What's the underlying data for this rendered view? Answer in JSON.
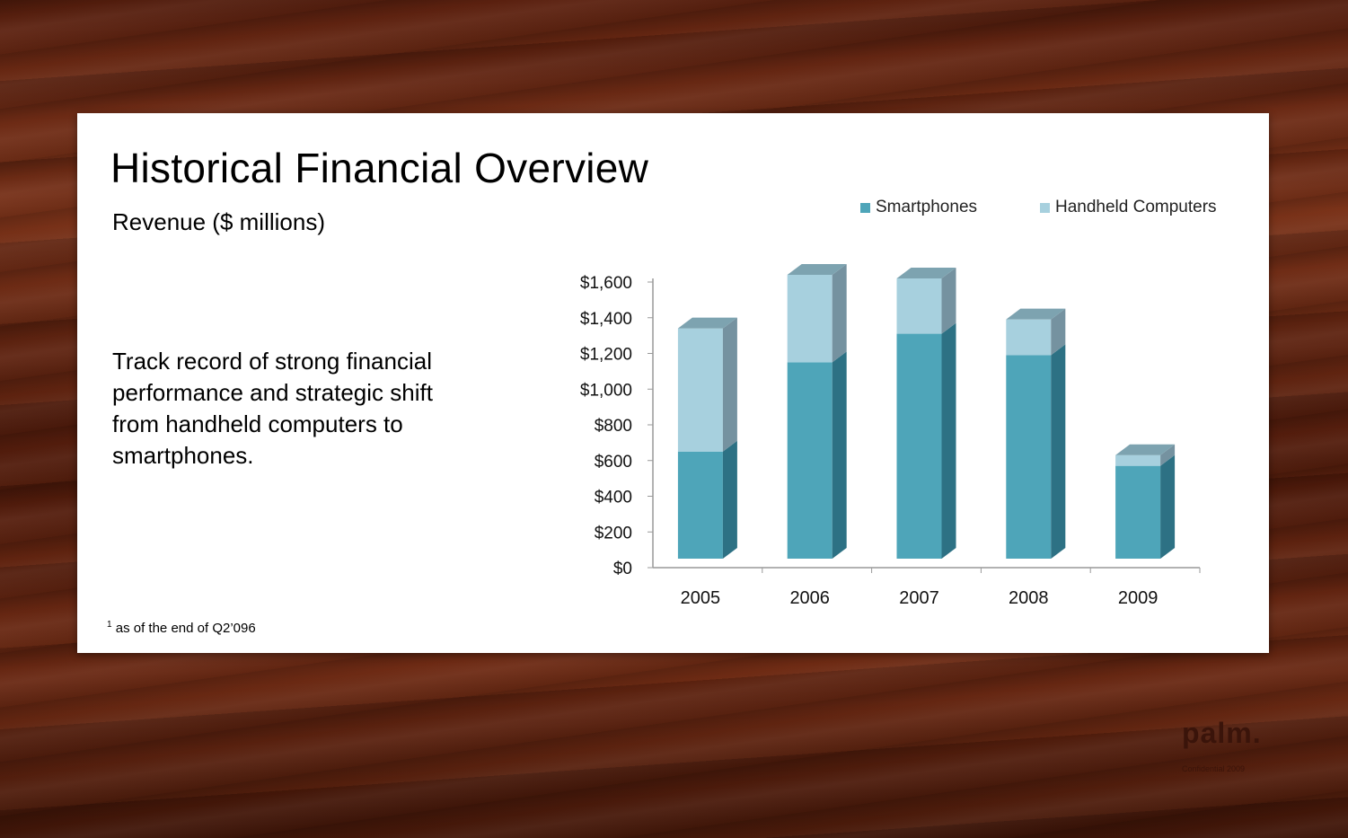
{
  "slide": {
    "title": "Historical Financial Overview",
    "subtitle": "Revenue ($ millions)",
    "body": "Track record of strong financial performance and strategic shift from handheld computers to smartphones.",
    "footnote_marker": "1",
    "footnote": "as of the end of Q2’096"
  },
  "brand": {
    "logo": "palm.",
    "confidential": "Confidential 2009"
  },
  "colors": {
    "smartphones": "#4ea5b9",
    "smartphones_side": "#2d7184",
    "handheld": "#a7d0de",
    "handheld_side": "#7592a0"
  },
  "chart_data": {
    "type": "bar",
    "stacked": true,
    "categories": [
      "2005",
      "2006",
      "2007",
      "2008",
      "2009"
    ],
    "series": [
      {
        "name": "Smartphones",
        "values": [
          600,
          1100,
          1260,
          1140,
          520
        ]
      },
      {
        "name": "Handheld Computers",
        "values": [
          690,
          490,
          310,
          200,
          60
        ]
      }
    ],
    "ylim": [
      0,
      1600
    ],
    "yticks": [
      "$0",
      "$200",
      "$400",
      "$600",
      "$800",
      "$1,000",
      "$1,200",
      "$1,400",
      "$1,600"
    ],
    "ytick_values": [
      0,
      200,
      400,
      600,
      800,
      1000,
      1200,
      1400,
      1600
    ],
    "legend_position": "top-right",
    "grid": false
  }
}
